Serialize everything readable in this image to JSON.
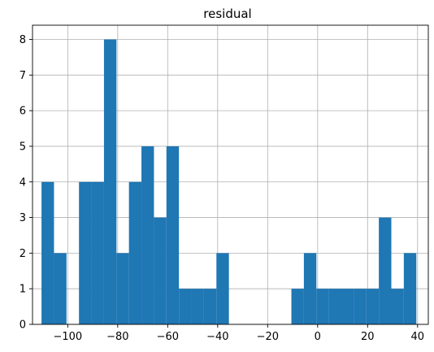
{
  "chart_data": {
    "type": "bar",
    "title": "residual",
    "xlabel": "",
    "ylabel": "",
    "grid": true,
    "colors": {
      "bar": "#1f77b4",
      "grid": "#b0b0b0",
      "axis": "#000000"
    },
    "xlim": [
      -114.1,
      44.3
    ],
    "ylim": [
      0,
      8.4
    ],
    "xticks": [
      -100,
      -80,
      -60,
      -40,
      -20,
      0,
      20,
      40
    ],
    "xtick_labels": [
      "−100",
      "−80",
      "−60",
      "−40",
      "−20",
      "0",
      "20",
      "40"
    ],
    "yticks": [
      0,
      1,
      2,
      3,
      4,
      5,
      6,
      7,
      8
    ],
    "ytick_labels": [
      "0",
      "1",
      "2",
      "3",
      "4",
      "5",
      "6",
      "7",
      "8"
    ],
    "bins": [
      {
        "x0": -110.5,
        "x1": -105.5,
        "count": 4
      },
      {
        "x0": -105.5,
        "x1": -100.5,
        "count": 2
      },
      {
        "x0": -100.5,
        "x1": -95.5,
        "count": 0
      },
      {
        "x0": -95.5,
        "x1": -90.5,
        "count": 4
      },
      {
        "x0": -90.5,
        "x1": -85.5,
        "count": 4
      },
      {
        "x0": -85.5,
        "x1": -80.5,
        "count": 8
      },
      {
        "x0": -80.5,
        "x1": -75.5,
        "count": 2
      },
      {
        "x0": -75.5,
        "x1": -70.5,
        "count": 4
      },
      {
        "x0": -70.5,
        "x1": -65.5,
        "count": 5
      },
      {
        "x0": -65.5,
        "x1": -60.5,
        "count": 3
      },
      {
        "x0": -60.5,
        "x1": -55.5,
        "count": 5
      },
      {
        "x0": -55.5,
        "x1": -50.5,
        "count": 1
      },
      {
        "x0": -50.5,
        "x1": -45.5,
        "count": 1
      },
      {
        "x0": -45.5,
        "x1": -40.5,
        "count": 1
      },
      {
        "x0": -40.5,
        "x1": -35.5,
        "count": 2
      },
      {
        "x0": -35.5,
        "x1": -30.5,
        "count": 0
      },
      {
        "x0": -30.5,
        "x1": -25.5,
        "count": 0
      },
      {
        "x0": -25.5,
        "x1": -20.5,
        "count": 0
      },
      {
        "x0": -20.5,
        "x1": -15.5,
        "count": 0
      },
      {
        "x0": -15.5,
        "x1": -10.5,
        "count": 0
      },
      {
        "x0": -10.5,
        "x1": -5.5,
        "count": 1
      },
      {
        "x0": -5.5,
        "x1": -0.5,
        "count": 2
      },
      {
        "x0": -0.5,
        "x1": 4.5,
        "count": 1
      },
      {
        "x0": 4.5,
        "x1": 9.5,
        "count": 1
      },
      {
        "x0": 9.5,
        "x1": 14.5,
        "count": 1
      },
      {
        "x0": 14.5,
        "x1": 19.5,
        "count": 1
      },
      {
        "x0": 19.5,
        "x1": 24.5,
        "count": 1
      },
      {
        "x0": 24.5,
        "x1": 29.5,
        "count": 3
      },
      {
        "x0": 29.5,
        "x1": 34.5,
        "count": 1
      },
      {
        "x0": 34.5,
        "x1": 39.5,
        "count": 2
      },
      {
        "x0": 39.5,
        "x1": 40.5,
        "count": 0
      }
    ]
  }
}
